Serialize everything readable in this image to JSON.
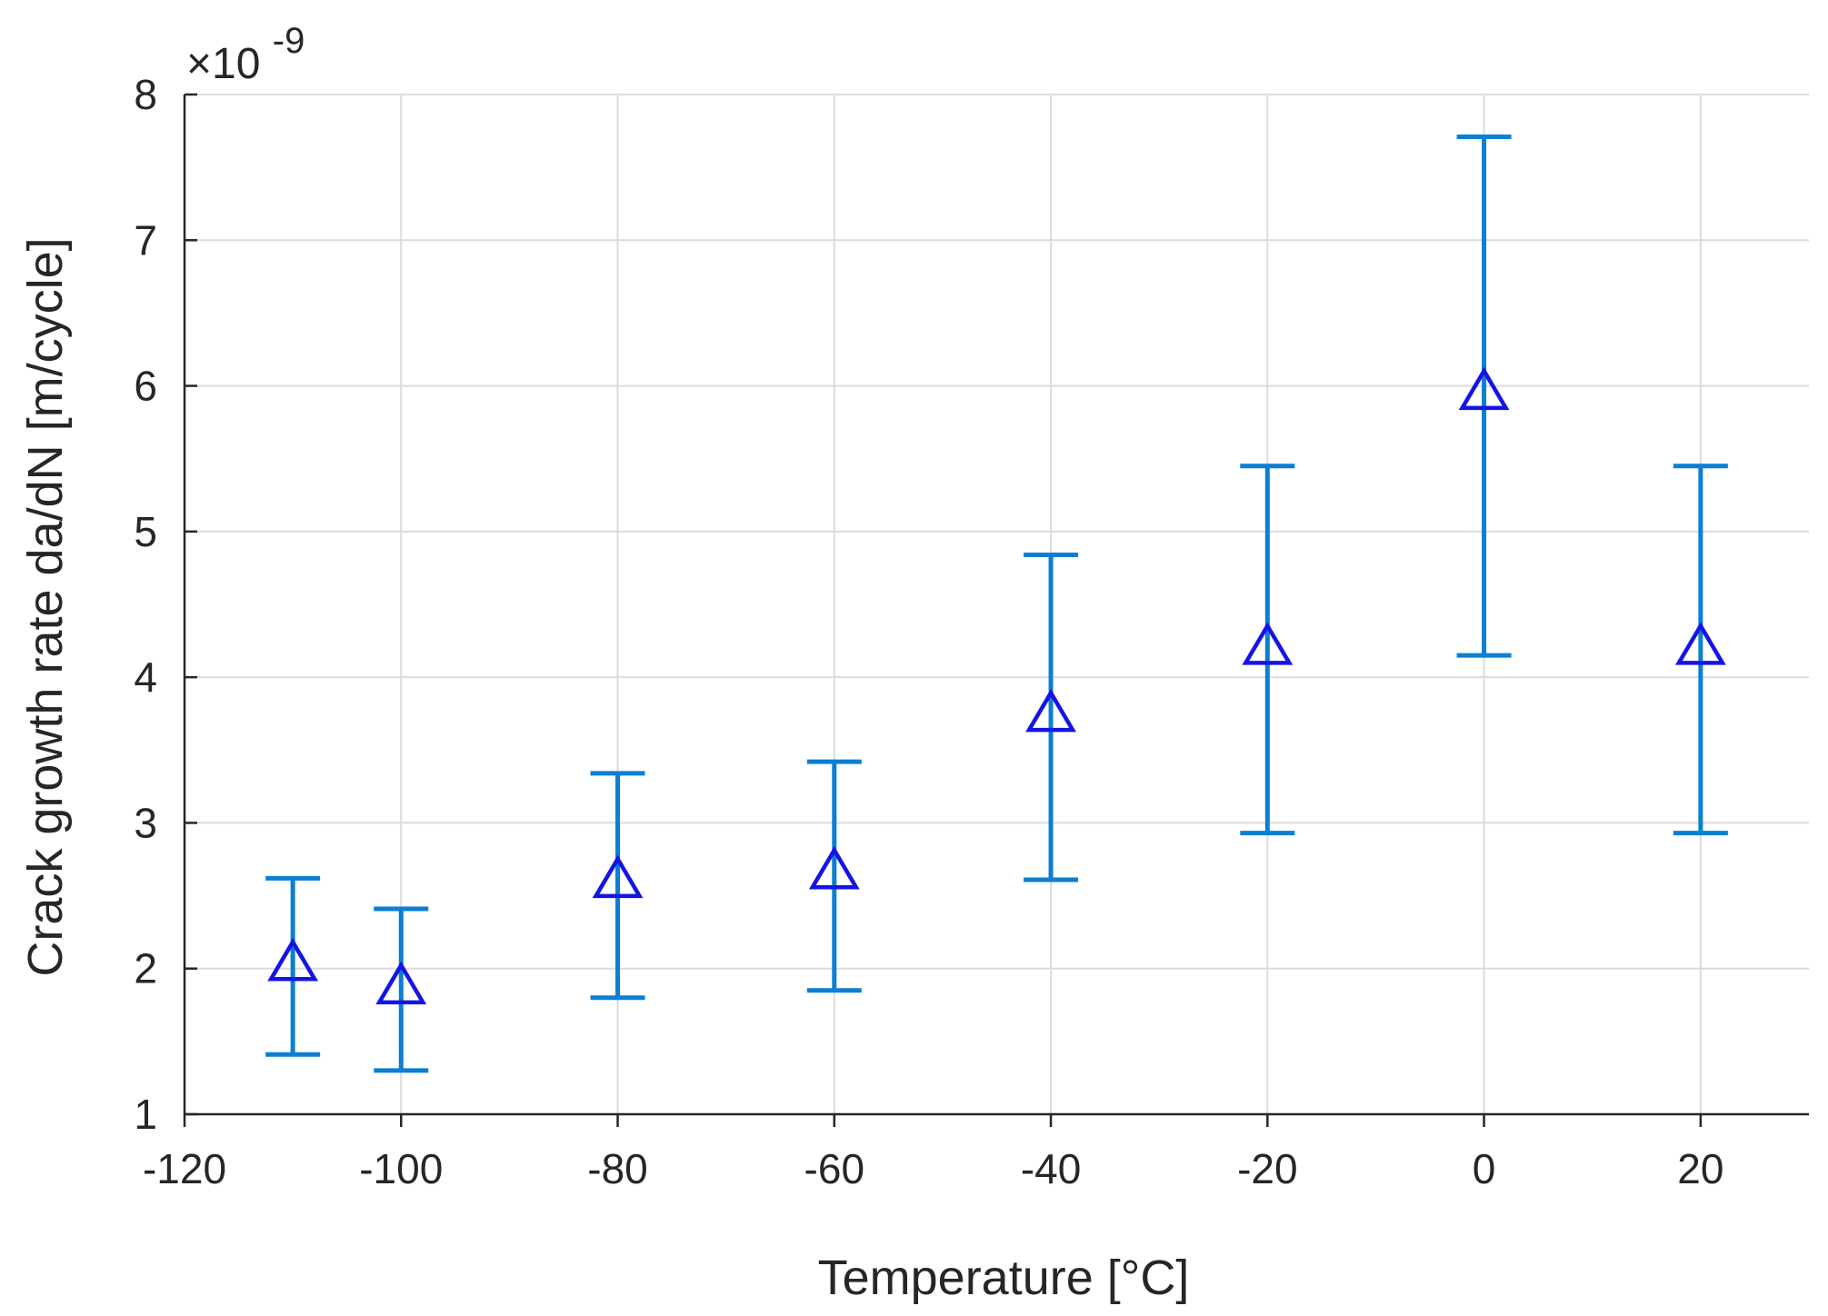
{
  "chart_data": {
    "type": "scatter",
    "title": "",
    "xlabel": "Temperature [°C]",
    "ylabel": "Crack growth rate da/dN [m/cycle]",
    "y_multiplier": {
      "base": "×10",
      "exponent": "-9"
    },
    "xlim": [
      -120,
      30
    ],
    "ylim": [
      1,
      8
    ],
    "xticks": [
      -120,
      -100,
      -80,
      -60,
      -40,
      -20,
      0,
      20
    ],
    "xtick_labels": [
      "-120",
      "-100",
      "-80",
      "-60",
      "-40",
      "-20",
      "0",
      "20"
    ],
    "yticks": [
      1,
      2,
      3,
      4,
      5,
      6,
      7,
      8
    ],
    "ytick_labels": [
      "1",
      "2",
      "3",
      "4",
      "5",
      "6",
      "7",
      "8"
    ],
    "grid": true,
    "marker": "triangle",
    "colors": {
      "marker": "#1414e6",
      "error_bar": "#0a7fd4",
      "grid": "#dcdcdc",
      "axis": "#262626"
    },
    "series": [
      {
        "x": [
          -110,
          -100,
          -80,
          -60,
          -40,
          -20,
          0,
          20
        ],
        "y": [
          2.03,
          1.87,
          2.6,
          2.66,
          3.74,
          4.2,
          5.95,
          4.2
        ],
        "y_lower": [
          1.41,
          1.3,
          1.8,
          1.85,
          2.61,
          2.93,
          4.15,
          2.93
        ],
        "y_upper": [
          2.62,
          2.41,
          3.34,
          3.42,
          4.84,
          5.45,
          7.71,
          5.45
        ]
      }
    ]
  }
}
